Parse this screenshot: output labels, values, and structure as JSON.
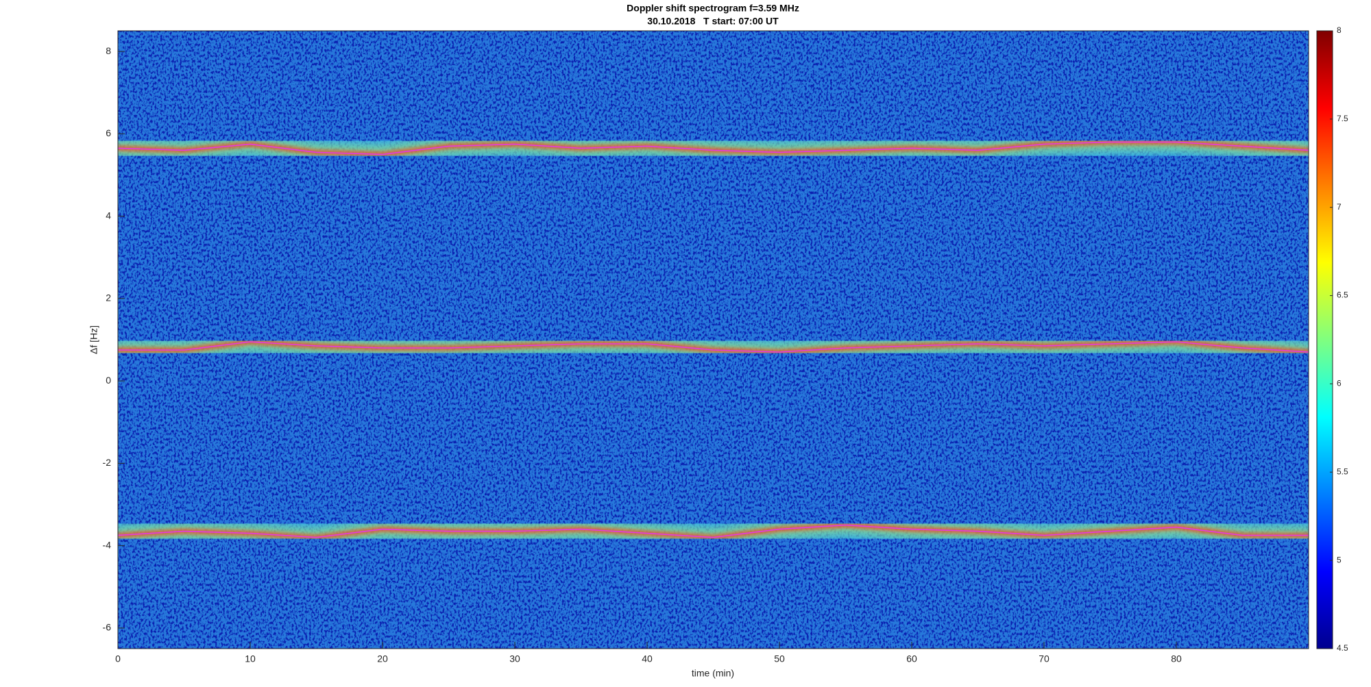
{
  "chart_data": {
    "type": "spectrogram",
    "title": "Doppler shift spectrogram f=3.59 MHz",
    "subtitle": "30.10.2018   T start: 07:00 UT",
    "x_label": "time (min)",
    "y_label": "Δf [Hz]",
    "x": [
      0,
      5,
      10,
      15,
      20,
      25,
      30,
      35,
      40,
      45,
      50,
      55,
      60,
      65,
      70,
      75,
      80,
      85,
      90
    ],
    "series": [
      {
        "color": "#e23ce2",
        "values": [
          5.65,
          5.6,
          5.75,
          5.55,
          5.5,
          5.7,
          5.75,
          5.65,
          5.7,
          5.6,
          5.55,
          5.6,
          5.65,
          5.6,
          5.75,
          5.8,
          5.8,
          5.7,
          5.6
        ]
      },
      {
        "color": "#e23ce2",
        "values": [
          0.75,
          0.75,
          0.95,
          0.85,
          0.8,
          0.8,
          0.85,
          0.9,
          0.9,
          0.75,
          0.7,
          0.8,
          0.85,
          0.9,
          0.85,
          0.9,
          0.95,
          0.8,
          0.7
        ]
      },
      {
        "color": "#e23ce2",
        "values": [
          -3.75,
          -3.65,
          -3.7,
          -3.8,
          -3.6,
          -3.65,
          -3.65,
          -3.6,
          -3.7,
          -3.8,
          -3.6,
          -3.5,
          -3.6,
          -3.65,
          -3.75,
          -3.65,
          -3.55,
          -3.75,
          -3.75
        ]
      }
    ],
    "xlim": [
      0,
      90
    ],
    "xticks": [
      0,
      10,
      20,
      30,
      40,
      50,
      60,
      70,
      80
    ],
    "ylim": [
      -6.5,
      8.5
    ],
    "yticks": [
      -6,
      -4,
      -2,
      0,
      2,
      4,
      6,
      8
    ],
    "colormap": "jet",
    "clim": [
      4.5,
      8
    ],
    "cticks": [
      4.5,
      5,
      5.5,
      6,
      6.5,
      7,
      7.5,
      8
    ]
  }
}
